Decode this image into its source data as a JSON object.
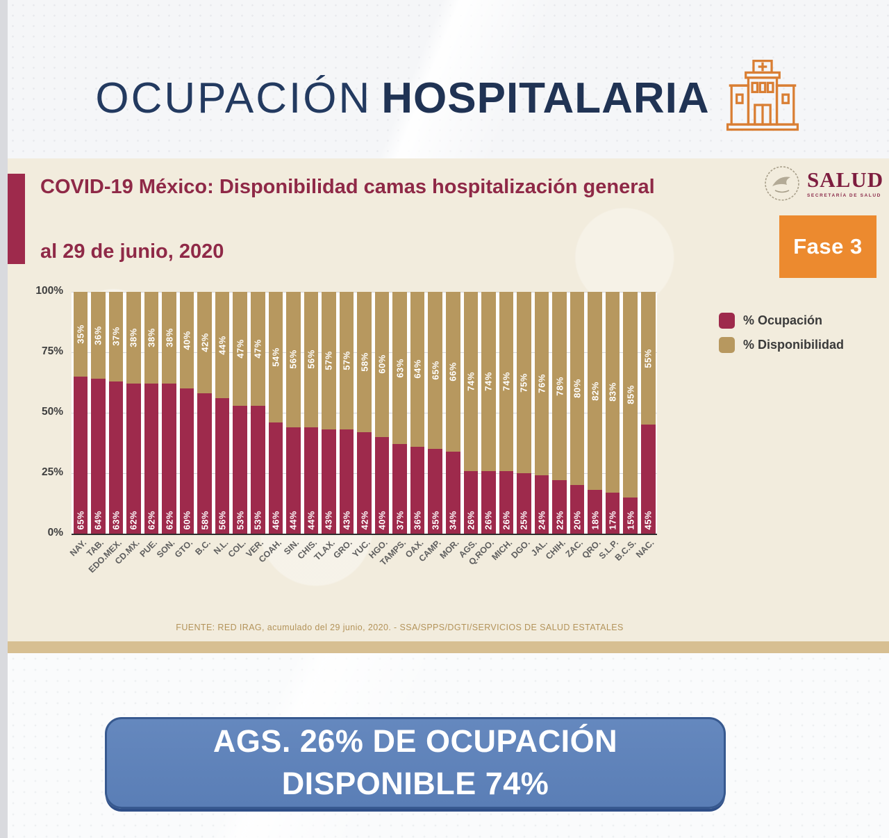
{
  "header": {
    "title_light": "OCUPACIÓN",
    "title_bold": "HOSPITALARIA"
  },
  "slide": {
    "subtitle": "COVID-19 México: Disponibilidad camas hospitalización general",
    "date": "al 29 de junio, 2020",
    "logo": {
      "name": "SALUD",
      "tagline": "SECRETARÍA DE SALUD"
    },
    "phase_badge": "Fase 3",
    "source": "FUENTE: RED IRAG, acumulado del 29 junio, 2020. -  SSA/SPPS/DGTI/SERVICIOS DE SALUD ESTATALES"
  },
  "legend": {
    "ocupacion": "% Ocupación",
    "disponibilidad": "% Disponibilidad"
  },
  "banner": {
    "line1": "AGS. 26% DE OCUPACIÓN",
    "line2": "DISPONIBLE 74%"
  },
  "colors": {
    "ocupacion": "#9e2a4c",
    "disponibilidad": "#b7985f",
    "phase_orange": "#ec8a2f",
    "title_navy": "#233a60",
    "subtitle_maroon": "#8f2947",
    "banner_blue": "#5d81b8",
    "banner_border": "#37598f",
    "band_tan": "#d7bf92",
    "hospital_icon_orange": "#d97e33"
  },
  "chart_data": {
    "type": "bar",
    "stacked": true,
    "title": "COVID-19 México: Disponibilidad camas hospitalización general al 29 de junio, 2020",
    "categories": [
      "NAY.",
      "TAB.",
      "EDO.MEX.",
      "CD.MX.",
      "PUE.",
      "SON.",
      "GTO.",
      "B.C.",
      "N.L.",
      "COL.",
      "VER.",
      "COAH.",
      "SIN.",
      "CHIS.",
      "TLAX.",
      "GRO.",
      "YUC.",
      "HGO.",
      "TAMPS.",
      "OAX.",
      "CAMP.",
      "MOR.",
      "AGS.",
      "Q.ROO.",
      "MICH.",
      "DGO.",
      "JAL.",
      "CHIH.",
      "ZAC.",
      "QRO.",
      "S.L.P.",
      "B.C.S.",
      "NAC."
    ],
    "series": [
      {
        "name": "% Ocupación",
        "color": "#9e2a4c",
        "values": [
          65,
          64,
          63,
          62,
          62,
          62,
          60,
          58,
          56,
          53,
          53,
          46,
          44,
          44,
          43,
          43,
          42,
          40,
          37,
          36,
          35,
          34,
          26,
          26,
          26,
          25,
          24,
          22,
          20,
          18,
          17,
          15,
          45
        ]
      },
      {
        "name": "% Disponibilidad",
        "color": "#b7985f",
        "values": [
          35,
          36,
          37,
          38,
          38,
          38,
          40,
          42,
          44,
          47,
          47,
          54,
          56,
          56,
          57,
          57,
          58,
          60,
          63,
          64,
          65,
          66,
          74,
          74,
          74,
          75,
          76,
          78,
          80,
          82,
          83,
          85,
          55
        ]
      }
    ],
    "value_label_format": "percent",
    "yticks": [
      "100%",
      "75%",
      "50%",
      "25%",
      "0%"
    ],
    "ylim": [
      0,
      100
    ],
    "grid": true,
    "legend_position": "right"
  }
}
